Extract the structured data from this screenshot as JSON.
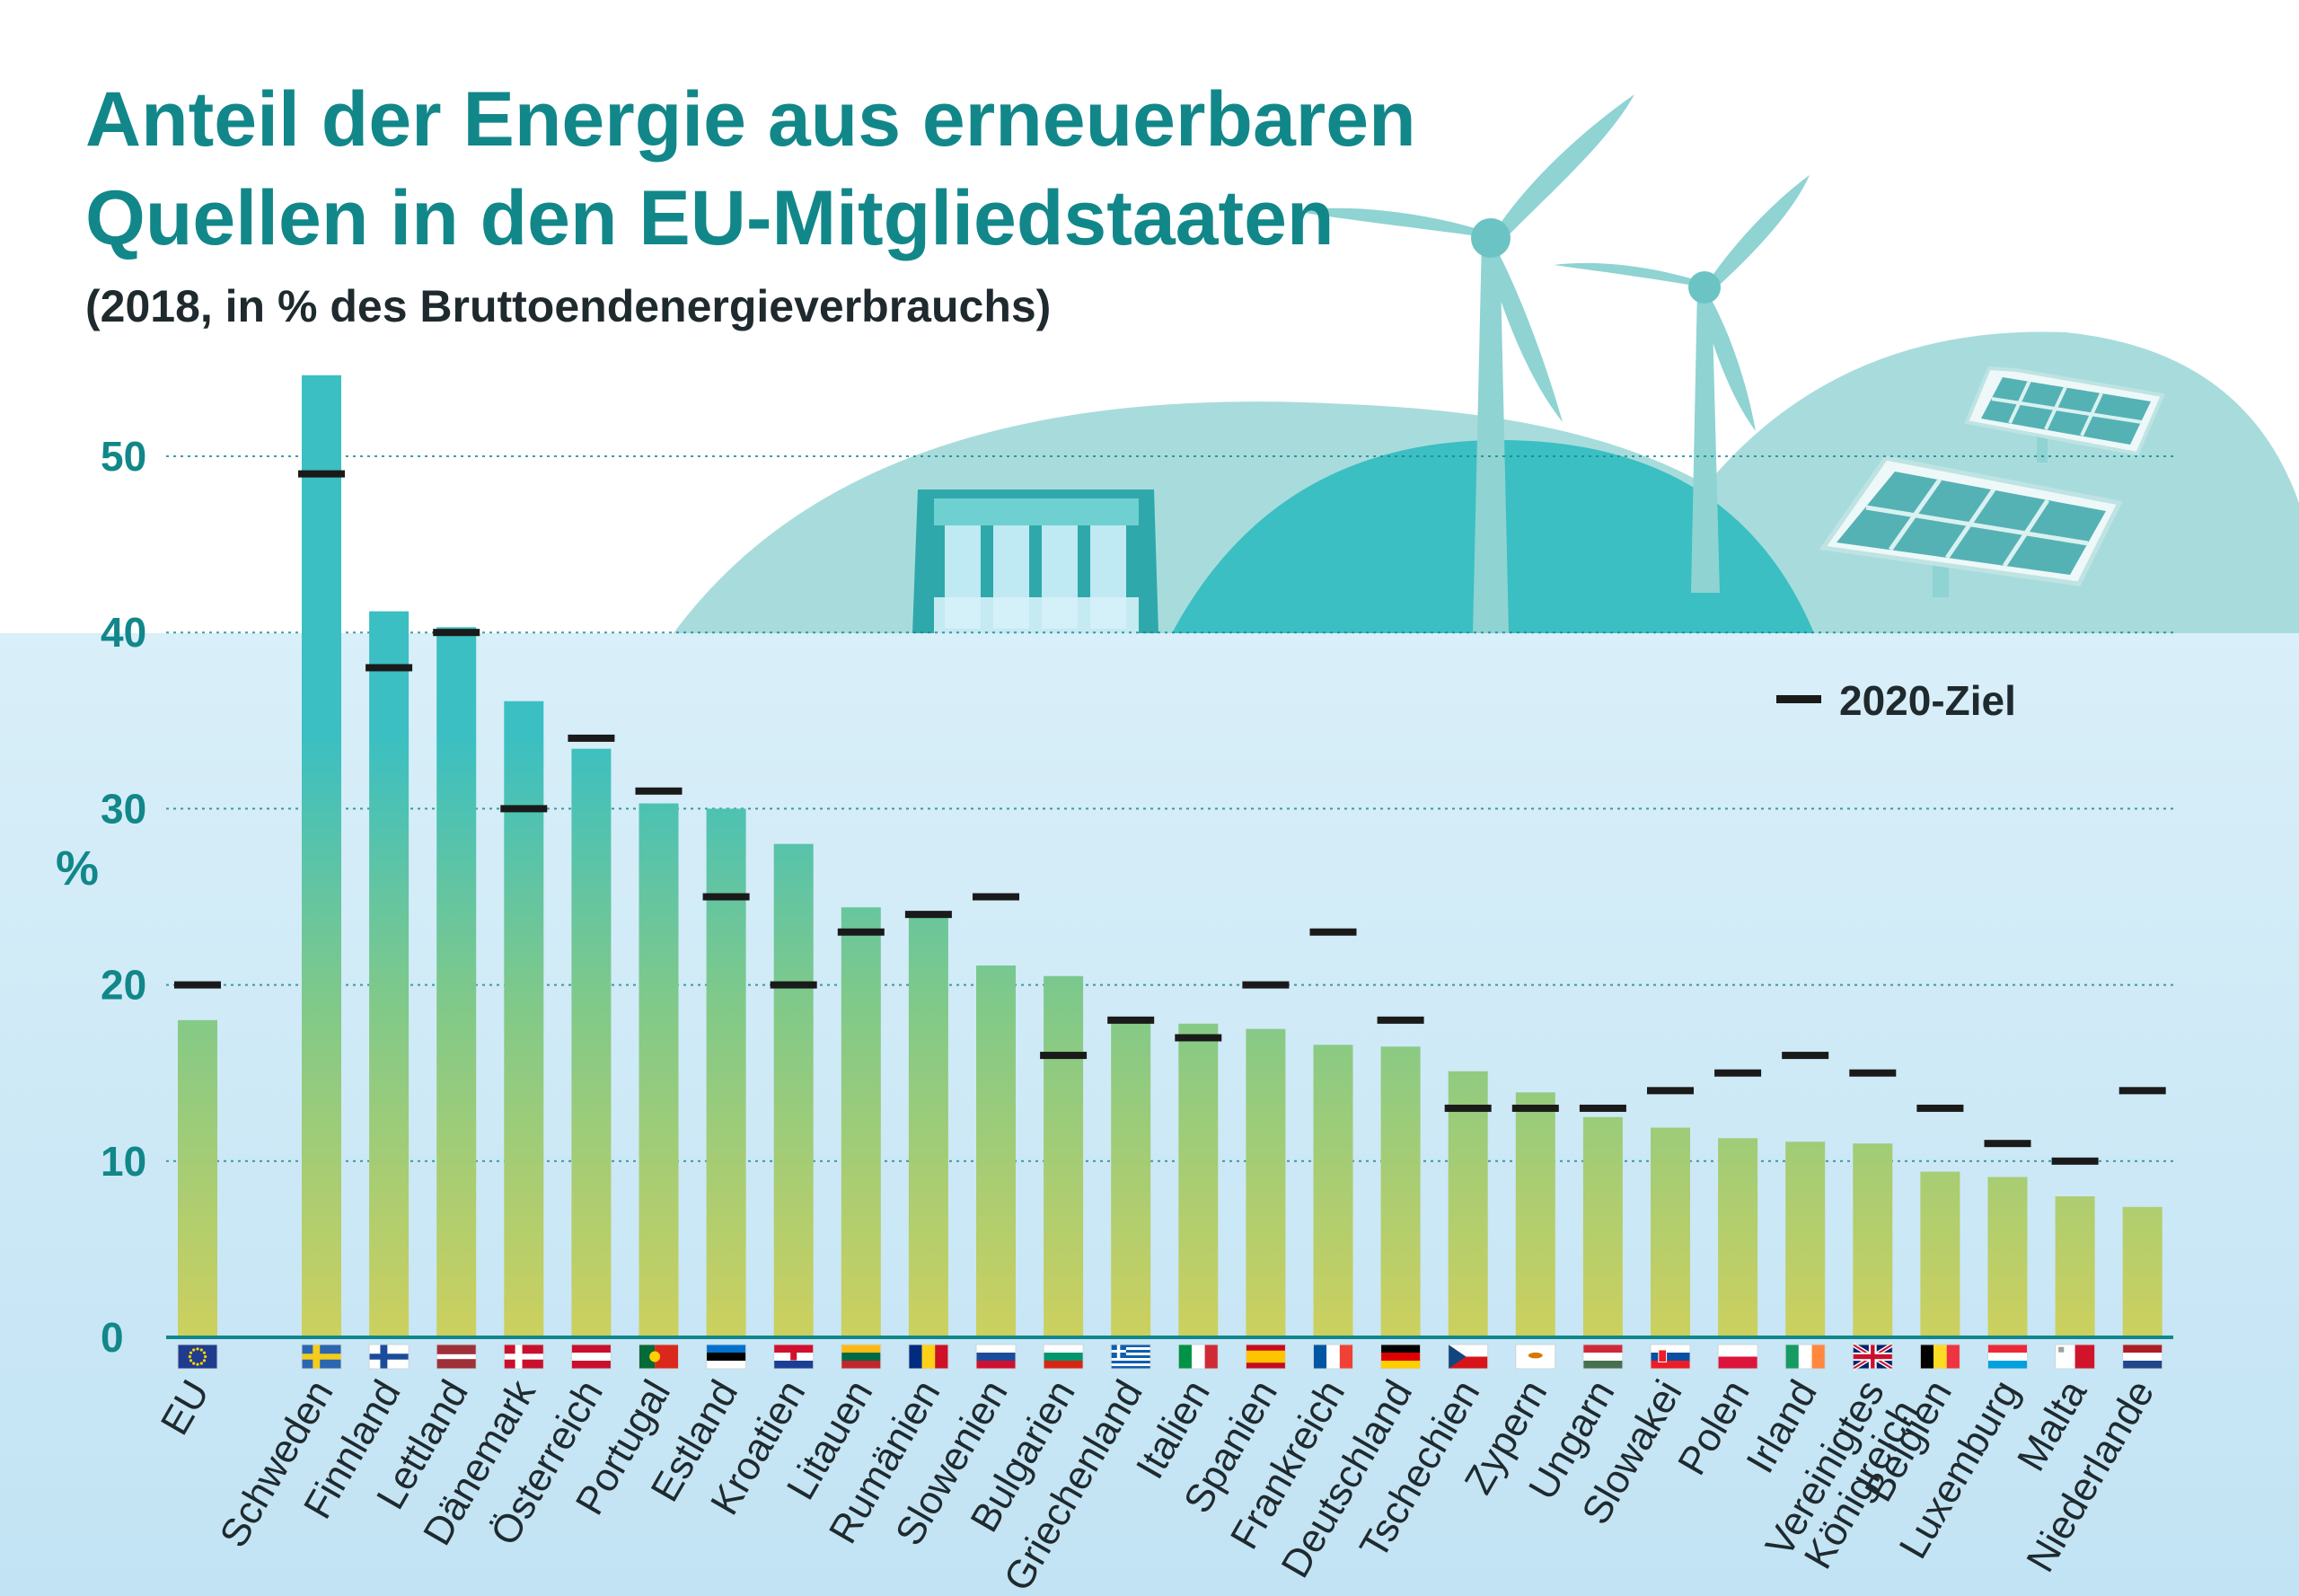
{
  "header": {
    "title_lines": [
      "Anteil der Energie aus erneuerbaren",
      "Quellen in den EU-Mitgliedstaaten"
    ],
    "subtitle": "(2018, in % des Bruttoendenergieverbrauchs)"
  },
  "legend": {
    "target_label": "2020-Ziel",
    "target_color": "#1a1a1a",
    "placement": "top-right"
  },
  "colors": {
    "bar_top": "#3bbfc2",
    "bar_bottom": "#cdd05e",
    "axis": "#12878a",
    "sky": "#cfe9f7",
    "hill_light": "#a8dcdc",
    "hill_dark": "#3bbfc2"
  },
  "chart_data": {
    "type": "bar",
    "title": "Anteil der Energie aus erneuerbaren Quellen in den EU-Mitgliedstaaten",
    "subtitle": "(2018, in % des Bruttoendenergieverbrauchs)",
    "ylabel": "%",
    "ylim": [
      0,
      55
    ],
    "yticks": [
      "0",
      "10",
      "20",
      "30",
      "40",
      "50"
    ],
    "grid": true,
    "categories": [
      "EU",
      "Schweden",
      "Finnland",
      "Lettland",
      "Dänemark",
      "Österreich",
      "Portugal",
      "Estland",
      "Kroatien",
      "Litauen",
      "Rumänien",
      "Slowenien",
      "Bulgarien",
      "Griechenland",
      "Italien",
      "Spanien",
      "Frankreich",
      "Deutschland",
      "Tschechien",
      "Zypern",
      "Ungarn",
      "Slowakei",
      "Polen",
      "Irland",
      "Vereinigtes Königreich",
      "Belgien",
      "Luxemburg",
      "Malta",
      "Niederlande"
    ],
    "series": [
      {
        "values": [
          18.0,
          54.6,
          41.2,
          40.3,
          36.1,
          33.4,
          30.3,
          30.0,
          28.0,
          24.4,
          23.9,
          21.1,
          20.5,
          18.0,
          17.8,
          17.5,
          16.6,
          16.5,
          15.1,
          13.9,
          12.5,
          11.9,
          11.3,
          11.1,
          11.0,
          9.4,
          9.1,
          8.0,
          7.4
        ]
      },
      {
        "name": "2020-Ziel",
        "values": [
          20,
          49,
          38,
          40,
          30,
          34,
          31,
          25,
          20,
          23,
          24,
          25,
          16,
          18,
          17,
          20,
          23,
          18,
          13,
          13,
          13,
          14,
          15,
          16,
          15,
          13,
          11,
          10,
          14
        ]
      }
    ],
    "flags": [
      "eu",
      "se",
      "fi",
      "lv",
      "dk",
      "at",
      "pt",
      "ee",
      "hr",
      "lt",
      "ro",
      "si",
      "bg",
      "gr",
      "it",
      "es",
      "fr",
      "de",
      "cz",
      "cy",
      "hu",
      "sk",
      "pl",
      "ie",
      "gb",
      "be",
      "lu",
      "mt",
      "nl"
    ]
  }
}
